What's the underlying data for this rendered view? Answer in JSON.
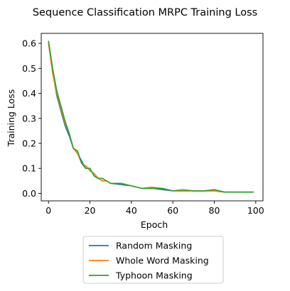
{
  "chart_data": {
    "type": "line",
    "title": "Sequence Classification MRPC Training Loss",
    "xlabel": "Epoch",
    "ylabel": "Training Loss",
    "xlim": [
      -3.5,
      103.5
    ],
    "ylim": [
      -0.03,
      0.64
    ],
    "xticks": [
      0,
      20,
      40,
      60,
      80,
      100
    ],
    "yticks": [
      0.0,
      0.1,
      0.2,
      0.3,
      0.4,
      0.5,
      0.6
    ],
    "grid": false,
    "legend": "bottom-center (outside)",
    "series": [
      {
        "name": "Random Masking",
        "color": "#1f77b4",
        "x": [
          0,
          2,
          4,
          6,
          8,
          10,
          12,
          14,
          16,
          18,
          20,
          22,
          24,
          26,
          28,
          30,
          35,
          40,
          45,
          50,
          55,
          60,
          65,
          70,
          75,
          80,
          85,
          90,
          95,
          99
        ],
        "y": [
          0.61,
          0.49,
          0.39,
          0.33,
          0.27,
          0.23,
          0.18,
          0.16,
          0.13,
          0.1,
          0.1,
          0.07,
          0.06,
          0.05,
          0.05,
          0.04,
          0.035,
          0.03,
          0.02,
          0.02,
          0.015,
          0.01,
          0.015,
          0.01,
          0.01,
          0.01,
          0.005,
          0.005,
          0.005,
          0.005
        ]
      },
      {
        "name": "Whole Word Masking",
        "color": "#ff7f0e",
        "x": [
          0,
          2,
          4,
          6,
          8,
          10,
          12,
          14,
          16,
          18,
          20,
          22,
          24,
          26,
          28,
          30,
          35,
          40,
          45,
          50,
          55,
          60,
          65,
          70,
          75,
          80,
          85,
          90,
          95,
          99
        ],
        "y": [
          0.6,
          0.48,
          0.4,
          0.34,
          0.28,
          0.24,
          0.18,
          0.16,
          0.12,
          0.11,
          0.09,
          0.08,
          0.06,
          0.05,
          0.05,
          0.04,
          0.04,
          0.03,
          0.02,
          0.025,
          0.02,
          0.01,
          0.015,
          0.01,
          0.01,
          0.01,
          0.005,
          0.005,
          0.005,
          0.005
        ]
      },
      {
        "name": "Typhoon Masking",
        "color": "#2ca02c",
        "x": [
          0,
          2,
          4,
          6,
          8,
          10,
          12,
          14,
          16,
          18,
          20,
          22,
          24,
          26,
          28,
          30,
          35,
          40,
          45,
          50,
          55,
          60,
          65,
          70,
          75,
          80,
          85,
          90,
          95,
          99
        ],
        "y": [
          0.61,
          0.5,
          0.41,
          0.35,
          0.29,
          0.24,
          0.18,
          0.17,
          0.12,
          0.1,
          0.1,
          0.07,
          0.06,
          0.06,
          0.05,
          0.04,
          0.04,
          0.03,
          0.02,
          0.02,
          0.02,
          0.01,
          0.01,
          0.01,
          0.01,
          0.015,
          0.005,
          0.005,
          0.005,
          0.005
        ]
      }
    ]
  }
}
